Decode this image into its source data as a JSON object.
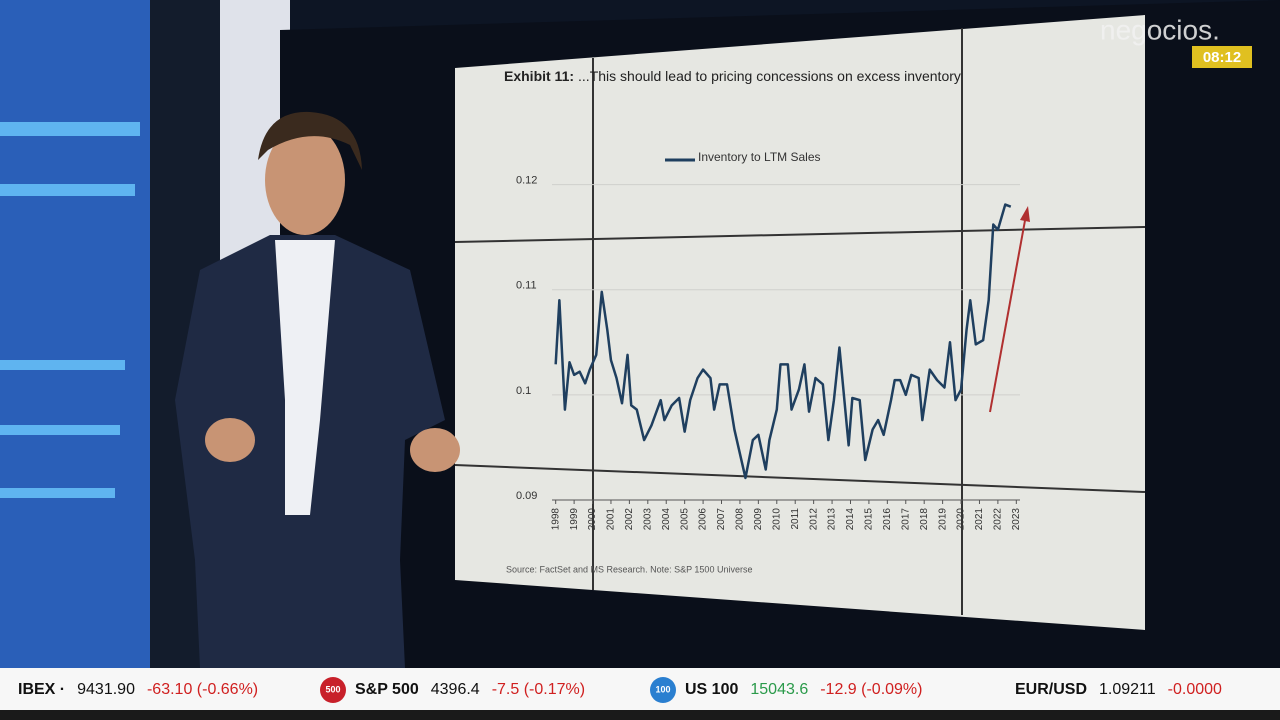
{
  "broadcast": {
    "logo": "negocios.",
    "time": "08:12",
    "ticker": [
      {
        "name": "IBEX ·",
        "price": "9431.90",
        "change": "-63.10 (-0.66%)"
      },
      {
        "badge": "500",
        "name": "S&P 500",
        "price": "4396.4",
        "change": "-7.5 (-0.17%)"
      },
      {
        "badge": "100",
        "name": "US 100",
        "price": "15043.6",
        "change": "-12.9 (-0.09%)"
      },
      {
        "name": "EUR/USD",
        "price": "1.09211",
        "change": "-0.0000"
      }
    ]
  },
  "chart_data": {
    "type": "line",
    "title": "Exhibit 11:",
    "subtitle": "...This should lead to pricing concessions on excess inventory",
    "source": "Source: FactSet and MS Research. Note: S&P 1500 Universe",
    "x": [
      1998.0,
      1998.2,
      1998.5,
      1998.75,
      1999.0,
      1999.3,
      1999.6,
      1999.85,
      2000.2,
      2000.5,
      2000.8,
      2001.0,
      2001.3,
      2001.6,
      2001.9,
      2002.1,
      2002.4,
      2002.8,
      2003.2,
      2003.7,
      2003.9,
      2004.3,
      2004.7,
      2005.0,
      2005.3,
      2005.7,
      2006.0,
      2006.4,
      2006.6,
      2006.9,
      2007.3,
      2007.7,
      2008.3,
      2008.7,
      2009.0,
      2009.4,
      2009.6,
      2010.0,
      2010.2,
      2010.6,
      2010.8,
      2011.2,
      2011.5,
      2011.75,
      2012.1,
      2012.5,
      2012.8,
      2013.1,
      2013.4,
      2013.9,
      2014.1,
      2014.5,
      2014.8,
      2015.2,
      2015.5,
      2015.8,
      2016.2,
      2016.4,
      2016.7,
      2017.0,
      2017.3,
      2017.7,
      2017.9,
      2018.3,
      2018.7,
      2019.1,
      2019.4,
      2019.7,
      2020.0,
      2020.3,
      2020.5,
      2020.8,
      2021.2,
      2021.5,
      2021.75,
      2022.0,
      2022.4,
      2022.7
    ],
    "series": [
      {
        "name": "Inventory to LTM Sales",
        "color": "#1f3f5f",
        "values": [
          0.1029,
          0.109,
          0.0986,
          0.1031,
          0.1019,
          0.1022,
          0.1011,
          0.1024,
          0.1038,
          0.1098,
          0.1062,
          0.1033,
          0.1016,
          0.0992,
          0.1038,
          0.099,
          0.0986,
          0.0957,
          0.0971,
          0.0995,
          0.0976,
          0.099,
          0.0997,
          0.0965,
          0.0995,
          0.1016,
          0.1024,
          0.1016,
          0.0986,
          0.101,
          0.101,
          0.0967,
          0.0921,
          0.0957,
          0.0962,
          0.0929,
          0.0957,
          0.0986,
          0.1029,
          0.1029,
          0.0986,
          0.1005,
          0.1029,
          0.0984,
          0.1016,
          0.101,
          0.0957,
          0.0995,
          0.1045,
          0.0952,
          0.0997,
          0.0995,
          0.0938,
          0.0967,
          0.0976,
          0.0962,
          0.0995,
          0.1014,
          0.1014,
          0.1,
          0.1019,
          0.1016,
          0.0976,
          0.1024,
          0.1014,
          0.1007,
          0.105,
          0.0995,
          0.1005,
          0.1062,
          0.109,
          0.1048,
          0.1052,
          0.109,
          0.1162,
          0.1157,
          0.1181,
          0.1179
        ]
      }
    ],
    "xlim": [
      1997.8,
      2023.2
    ],
    "xticks": [
      1998,
      1999,
      2000,
      2001,
      2002,
      2003,
      2004,
      2005,
      2006,
      2007,
      2008,
      2009,
      2010,
      2011,
      2012,
      2013,
      2014,
      2015,
      2016,
      2017,
      2018,
      2019,
      2020,
      2021,
      2022,
      2023
    ],
    "ylim": [
      0.09,
      0.125
    ],
    "yticks": [
      0.09,
      0.1,
      0.11,
      0.12
    ],
    "grid": true
  }
}
